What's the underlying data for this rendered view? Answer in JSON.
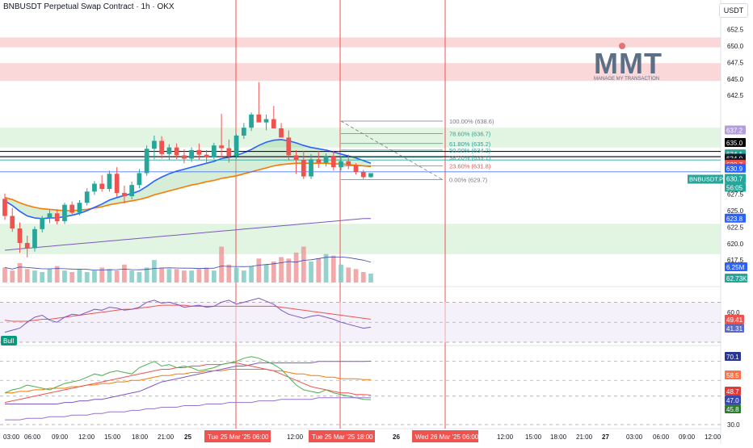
{
  "header": {
    "title": "BNBUSDT Perpetual Swap Contract · 1h · OKX",
    "currency": "USDT"
  },
  "logo": {
    "text": "MMT",
    "tagline": "MANAGE MY TRANSACTION"
  },
  "colors": {
    "up": "#26a69a",
    "down": "#ef5350",
    "ema_fast": "#2962ff",
    "ema_slow": "#f57c00",
    "ma_long": "#7e57c2",
    "resistance_zone": "#f8c9cc",
    "support_zone": "#d6efd6",
    "vline": "#ef5350"
  },
  "chart_data": [
    {
      "type": "candlestick",
      "title": "BNBUSDT Perpetual Swap Contract · 1h · OKX",
      "ylim": [
        615.5,
        654.5
      ],
      "y_ticks": [
        617.5,
        620.0,
        622.5,
        625.0,
        627.5,
        632.5,
        637.5,
        642.5,
        645.0,
        647.5,
        650.0,
        652.5
      ],
      "candles_ohlc": [
        [
          626.8,
          627.6,
          623.6,
          624.2
        ],
        [
          624.2,
          625.4,
          621.8,
          622.3
        ],
        [
          622.3,
          623.2,
          618.6,
          620.1
        ],
        [
          620.1,
          621.2,
          617.9,
          619.3
        ],
        [
          619.3,
          622.6,
          618.8,
          622.2
        ],
        [
          622.2,
          624.2,
          621.7,
          623.9
        ],
        [
          623.9,
          625.1,
          623.1,
          624.6
        ],
        [
          624.6,
          625.2,
          622.9,
          623.4
        ],
        [
          623.4,
          626.2,
          623.0,
          625.9
        ],
        [
          625.9,
          626.4,
          624.2,
          624.7
        ],
        [
          624.7,
          626.6,
          624.3,
          626.2
        ],
        [
          626.2,
          628.4,
          625.8,
          627.9
        ],
        [
          627.9,
          629.5,
          627.4,
          629.1
        ],
        [
          629.1,
          630.4,
          627.9,
          628.3
        ],
        [
          628.3,
          631.1,
          627.9,
          630.6
        ],
        [
          630.6,
          631.6,
          627.1,
          627.7
        ],
        [
          627.7,
          628.8,
          626.1,
          627.2
        ],
        [
          627.2,
          629.4,
          626.7,
          628.9
        ],
        [
          628.9,
          631.3,
          628.4,
          630.7
        ],
        [
          630.7,
          634.9,
          630.3,
          634.4
        ],
        [
          634.4,
          636.4,
          632.8,
          635.6
        ],
        [
          635.6,
          636.3,
          632.9,
          633.6
        ],
        [
          633.6,
          635.1,
          632.7,
          634.6
        ],
        [
          634.6,
          635.2,
          632.8,
          633.4
        ],
        [
          633.4,
          634.3,
          632.2,
          632.9
        ],
        [
          632.9,
          634.6,
          632.4,
          634.2
        ],
        [
          634.2,
          635.2,
          632.7,
          633.5
        ],
        [
          633.5,
          634.2,
          632.1,
          633.1
        ],
        [
          633.1,
          635.3,
          632.8,
          634.9
        ],
        [
          634.9,
          639.7,
          633.1,
          634.5
        ],
        [
          634.5,
          635.8,
          632.3,
          633.3
        ],
        [
          633.3,
          636.6,
          632.9,
          636.4
        ],
        [
          636.4,
          638.3,
          635.9,
          637.6
        ],
        [
          637.6,
          639.9,
          637.1,
          639.6
        ],
        [
          639.6,
          644.5,
          638.8,
          638.4
        ],
        [
          638.4,
          639.6,
          637.2,
          638.9
        ],
        [
          638.9,
          640.9,
          637.7,
          637.5
        ],
        [
          637.5,
          638.3,
          636.1,
          636.1
        ],
        [
          636.1,
          637.2,
          632.6,
          633.4
        ],
        [
          633.4,
          634.2,
          630.6,
          632.7
        ],
        [
          632.7,
          634.1,
          629.8,
          630.2
        ],
        [
          630.2,
          633.6,
          629.8,
          632.8
        ],
        [
          632.8,
          634.1,
          631.5,
          632.3
        ],
        [
          632.3,
          633.7,
          631.7,
          633.2
        ],
        [
          633.2,
          634.1,
          631.1,
          631.6
        ],
        [
          631.6,
          633.3,
          631.1,
          632.5
        ],
        [
          632.5,
          633.5,
          631.3,
          631.9
        ],
        [
          631.9,
          632.2,
          630.5,
          630.9
        ],
        [
          630.9,
          631.2,
          629.8,
          630.1
        ],
        [
          630.1,
          630.7,
          630.0,
          630.7
        ]
      ],
      "ema_fast": [
        626.5,
        625.8,
        624.9,
        624.2,
        623.9,
        623.8,
        623.9,
        623.9,
        624.1,
        624.3,
        624.6,
        625.0,
        625.5,
        626.0,
        626.6,
        627.0,
        627.3,
        627.6,
        628.0,
        628.7,
        629.5,
        630.1,
        630.6,
        631.0,
        631.3,
        631.6,
        631.9,
        632.2,
        632.5,
        632.9,
        633.1,
        633.4,
        633.8,
        634.3,
        634.9,
        635.4,
        635.7,
        635.8,
        635.6,
        635.3,
        634.9,
        634.6,
        634.4,
        634.2,
        633.9,
        633.6,
        633.3,
        633.0,
        632.6,
        632.2
      ],
      "ema_slow": [
        627.0,
        626.7,
        626.2,
        625.8,
        625.5,
        625.3,
        625.2,
        625.1,
        625.0,
        625.0,
        625.1,
        625.2,
        625.4,
        625.6,
        625.9,
        626.1,
        626.3,
        626.5,
        626.7,
        627.0,
        627.4,
        627.7,
        628.0,
        628.3,
        628.6,
        628.9,
        629.1,
        629.4,
        629.6,
        629.9,
        630.1,
        630.3,
        630.6,
        630.9,
        631.2,
        631.5,
        631.8,
        632.0,
        632.1,
        632.2,
        632.2,
        632.2,
        632.2,
        632.2,
        632.1,
        632.1,
        632.0,
        631.9,
        631.8,
        631.7
      ],
      "ma_long": [
        619.0,
        619.1,
        619.2,
        619.3,
        619.4,
        619.5,
        619.6,
        619.7,
        619.8,
        619.9,
        620.0,
        620.1,
        620.2,
        620.3,
        620.4,
        620.5,
        620.6,
        620.7,
        620.8,
        620.9,
        621.0,
        621.1,
        621.2,
        621.3,
        621.4,
        621.5,
        621.6,
        621.7,
        621.8,
        621.9,
        622.0,
        622.1,
        622.2,
        622.3,
        622.4,
        622.5,
        622.6,
        622.7,
        622.8,
        622.9,
        623.0,
        623.1,
        623.2,
        623.3,
        623.4,
        623.5,
        623.6,
        623.7,
        623.8,
        623.8
      ],
      "zones": [
        {
          "type": "resistance",
          "range": [
            649.8,
            651.3
          ]
        },
        {
          "type": "resistance",
          "range": [
            644.7,
            647.4
          ]
        },
        {
          "type": "support",
          "range": [
            634.6,
            637.6
          ]
        },
        {
          "type": "support",
          "range": [
            618.4,
            623.0
          ]
        }
      ],
      "horizontal_levels": [
        634.0,
        633.2,
        632.7,
        630.9
      ],
      "fibonacci": {
        "levels": [
          {
            "label": "100.00% (638.6)",
            "price": 638.6
          },
          {
            "label": "78.60% (636.7)",
            "price": 636.7
          },
          {
            "label": "61.80% (635.2)",
            "price": 635.2
          },
          {
            "label": "50.00% (634.2)",
            "price": 634.2
          },
          {
            "label": "38.20% (633.1)",
            "price": 633.1
          },
          {
            "label": "23.60% (631.8)",
            "price": 631.8
          },
          {
            "label": "0.00% (629.7)",
            "price": 629.7
          }
        ]
      },
      "price_badges": [
        {
          "value": "637.2",
          "color": "#b39ddb"
        },
        {
          "value": "635.0",
          "color": "#000000"
        },
        {
          "value": "634.1",
          "color": "#26a69a"
        },
        {
          "value": "634.0",
          "color": "#131722"
        },
        {
          "value": "633.2",
          "color": "#131722"
        },
        {
          "value": "632.7",
          "color": "#ef5350"
        },
        {
          "value": "630.9",
          "color": "#2962ff"
        },
        {
          "value": "630.7",
          "color": "#26a69a"
        },
        {
          "value": "56:05",
          "color": "#26a69a"
        },
        {
          "value": "623.8",
          "color": "#2962ff"
        }
      ],
      "symbol_badge": "BNBUSDT.P"
    },
    {
      "type": "bar",
      "name": "volume",
      "ylim": [
        0,
        100
      ],
      "values": [
        10,
        8,
        13,
        9,
        8,
        7,
        9,
        11,
        8,
        7,
        9,
        7,
        8,
        10,
        9,
        8,
        12,
        8,
        7,
        10,
        15,
        10,
        9,
        9,
        8,
        8,
        9,
        10,
        8,
        24,
        12,
        10,
        8,
        11,
        16,
        12,
        14,
        17,
        16,
        20,
        24,
        14,
        16,
        19,
        18,
        12,
        10,
        9,
        7,
        6
      ],
      "badges": [
        "6.25M",
        "62.73K"
      ]
    },
    {
      "type": "line",
      "name": "rsi",
      "ylim": [
        30,
        80
      ],
      "y_ticks": [
        60.0
      ],
      "badge": "Bull",
      "values": [
        40,
        42,
        44,
        50,
        55,
        57,
        52,
        50,
        55,
        58,
        57,
        60,
        63,
        62,
        65,
        64,
        62,
        63,
        65,
        70,
        72,
        69,
        70,
        68,
        65,
        66,
        67,
        65,
        66,
        70,
        72,
        68,
        70,
        72,
        74,
        71,
        68,
        62,
        58,
        56,
        54,
        56,
        57,
        55,
        53,
        50,
        48,
        46,
        44,
        45
      ],
      "signal": [
        52,
        51,
        51,
        51,
        52,
        53,
        53,
        54,
        55,
        56,
        57,
        58,
        59,
        60,
        61,
        62,
        63,
        63,
        64,
        65,
        66,
        67,
        67,
        67,
        67,
        66,
        66,
        66,
        66,
        66,
        66,
        66,
        66,
        66,
        66,
        66,
        66,
        65,
        64,
        63,
        62,
        61,
        60,
        59,
        58,
        57,
        56,
        55,
        54,
        53
      ],
      "badges": [
        "49.41",
        "41.31"
      ]
    },
    {
      "type": "line",
      "name": "oscillator",
      "ylim": [
        30,
        78
      ],
      "y_ticks": [
        30.0
      ],
      "series": [
        {
          "color": "#7e57c2",
          "values": [
            43,
            43,
            43,
            43,
            43,
            43,
            43,
            43,
            44,
            44,
            45,
            45,
            46,
            46,
            47,
            48,
            49,
            50,
            51,
            53,
            55,
            57,
            58,
            59,
            60,
            61,
            62,
            63,
            64,
            65,
            66,
            67,
            67,
            68,
            69,
            69,
            69,
            69,
            69,
            69,
            69,
            69,
            70,
            70,
            70,
            70,
            70,
            70,
            70,
            70.1
          ]
        },
        {
          "color": "#f57c00",
          "values": [
            50,
            50,
            51,
            51,
            52,
            52,
            53,
            53,
            53,
            54,
            54,
            55,
            55,
            56,
            56,
            57,
            57,
            58,
            58,
            59,
            60,
            61,
            61,
            62,
            62,
            63,
            63,
            64,
            64,
            64,
            65,
            65,
            65,
            65,
            65,
            65,
            64,
            64,
            63,
            62,
            62,
            61,
            61,
            60,
            60,
            59,
            59,
            59,
            58.5,
            58.5
          ]
        },
        {
          "color": "#ef5350",
          "values": [
            44,
            45,
            46,
            47,
            48,
            49,
            50,
            51,
            52,
            53,
            54,
            55,
            56,
            57,
            58,
            59,
            60,
            61,
            62,
            63,
            64,
            65,
            65,
            66,
            66,
            67,
            67,
            68,
            68,
            68,
            69,
            69,
            68,
            67,
            66,
            65,
            64,
            62,
            60,
            58,
            56,
            54,
            53,
            52,
            51,
            50,
            50,
            49,
            49,
            48.7
          ]
        },
        {
          "color": "#4caf50",
          "values": [
            50,
            52,
            53,
            55,
            54,
            53,
            52,
            54,
            56,
            57,
            58,
            60,
            62,
            61,
            63,
            64,
            63,
            62,
            66,
            68,
            70,
            67,
            68,
            66,
            67,
            66,
            64,
            65,
            66,
            68,
            69,
            70,
            72,
            73,
            72,
            70,
            68,
            65,
            60,
            55,
            52,
            51,
            50,
            52,
            50,
            49,
            48,
            47,
            46,
            45.8
          ]
        },
        {
          "color": "#9575cd",
          "values": [
            33,
            33,
            33,
            34,
            34,
            34,
            35,
            35,
            35,
            36,
            36,
            36,
            37,
            37,
            38,
            38,
            38,
            39,
            39,
            40,
            40,
            41,
            41,
            41,
            42,
            42,
            42,
            43,
            43,
            43,
            44,
            44,
            44,
            44,
            45,
            45,
            45,
            46,
            46,
            46,
            46,
            46,
            47,
            47,
            47,
            47,
            47,
            47,
            47,
            47.0
          ]
        }
      ],
      "badges": [
        "70.1",
        "58.5",
        "48.7",
        "47.0",
        "45.8"
      ]
    }
  ],
  "x_axis": {
    "labels": [
      "03:00",
      "06:00",
      "09:00",
      "12:00",
      "15:00",
      "18:00",
      "21:00",
      "25",
      "Tue 25 Mar '25  06:00",
      "12:00",
      "Tue 25 Mar '25  18:00",
      "26",
      "Wed 26 Mar '25  06:00",
      "12:00",
      "15:00",
      "18:00",
      "21:00",
      "27",
      "03:00",
      "06:00",
      "09:00",
      "12:00"
    ]
  }
}
